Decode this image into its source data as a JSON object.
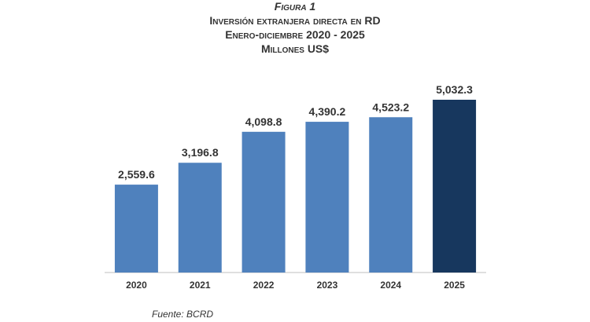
{
  "chart_data": {
    "type": "bar",
    "figure_label": "Figura 1",
    "title": "Inversión extranjera directa en RD",
    "subtitle": "Enero-diciembre 2020 - 2025",
    "unit": "Millones US$",
    "categories": [
      "2020",
      "2021",
      "2022",
      "2023",
      "2024",
      "2025"
    ],
    "values": [
      2559.6,
      3196.8,
      4098.8,
      4390.2,
      4523.2,
      5032.3
    ],
    "value_labels": [
      "2,559.6",
      "3,196.8",
      "4,098.8",
      "4,390.2",
      "4,523.2",
      "5,032.3"
    ],
    "colors": [
      "#4f81bd",
      "#4f81bd",
      "#4f81bd",
      "#4f81bd",
      "#4f81bd",
      "#17375e"
    ],
    "source": "Fuente: BCRD"
  }
}
